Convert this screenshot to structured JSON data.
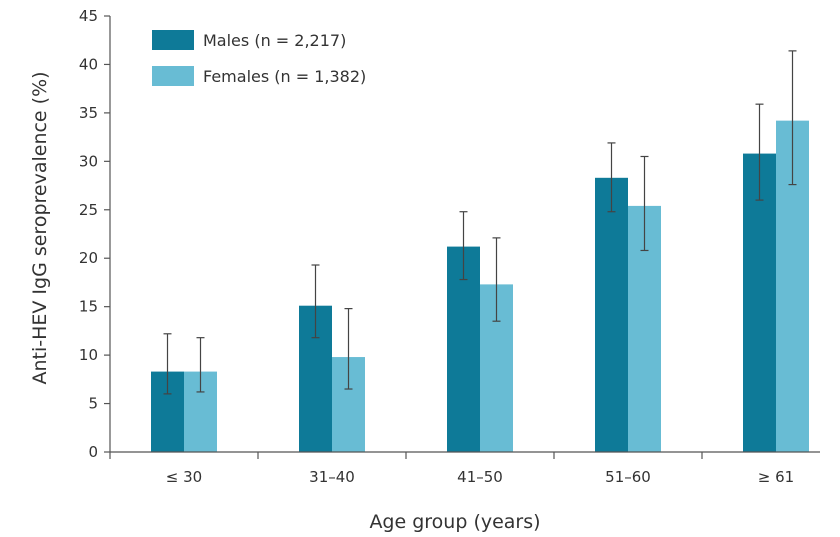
{
  "chart_data": {
    "type": "bar",
    "categories": [
      "≤ 30",
      "31–40",
      "41–50",
      "51–60",
      "≥ 61"
    ],
    "series": [
      {
        "name": "Males (n = 2,217)",
        "color": "#0e7a98",
        "values": [
          8.3,
          15.1,
          21.2,
          28.3,
          30.8
        ],
        "err_low": [
          6.0,
          11.8,
          17.8,
          24.8,
          26.0
        ],
        "err_high": [
          12.2,
          19.3,
          24.8,
          31.9,
          35.9
        ]
      },
      {
        "name": "Females (n = 1,382)",
        "color": "#68bcd4",
        "values": [
          8.3,
          9.8,
          17.3,
          25.4,
          34.2
        ],
        "err_low": [
          6.2,
          6.5,
          13.5,
          20.8,
          27.6
        ],
        "err_high": [
          11.8,
          14.8,
          22.1,
          30.5,
          41.4
        ]
      }
    ],
    "xlabel": "Age group (years)",
    "ylabel": "Anti-HEV IgG seroprevalence (%)",
    "ylim": [
      0,
      45
    ],
    "yticks": [
      "0",
      "5",
      "10",
      "15",
      "20",
      "25",
      "30",
      "35",
      "40",
      "45"
    ],
    "grid": false,
    "legend_position": "top-left"
  }
}
